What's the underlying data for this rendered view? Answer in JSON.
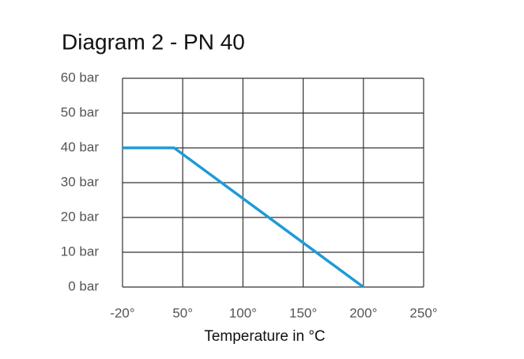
{
  "chart_data": {
    "type": "line",
    "title": "Diagram 2 - PN 40",
    "x_label": "Temperature in °C",
    "x": [
      -20,
      40,
      200
    ],
    "series": [
      {
        "color": "#1e9bd7",
        "values": [
          40,
          40,
          0
        ]
      }
    ],
    "xlim": [
      -20,
      250
    ],
    "xticks": [
      {
        "value": -20,
        "label": "-20°"
      },
      {
        "value": 50,
        "label": "50°"
      },
      {
        "value": 100,
        "label": "100°"
      },
      {
        "value": 150,
        "label": "150°"
      },
      {
        "value": 200,
        "label": "200°"
      },
      {
        "value": 250,
        "label": "250°"
      }
    ],
    "ylim": [
      0,
      60
    ],
    "yticks": [
      {
        "value": 0,
        "label": "0 bar"
      },
      {
        "value": 10,
        "label": "10 bar"
      },
      {
        "value": 20,
        "label": "20 bar"
      },
      {
        "value": 30,
        "label": "30 bar"
      },
      {
        "value": 40,
        "label": "40 bar"
      },
      {
        "value": 50,
        "label": "50 bar"
      },
      {
        "value": 60,
        "label": "60 bar"
      }
    ],
    "grid": true
  }
}
